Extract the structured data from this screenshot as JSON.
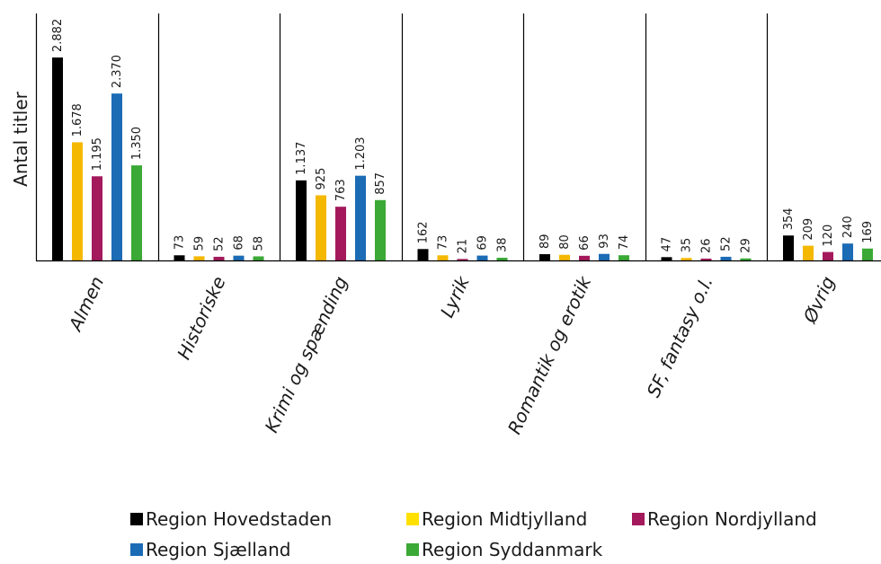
{
  "chart_data": {
    "type": "bar",
    "ylabel": "Antal titler",
    "xlabel": "",
    "title": "",
    "ylim": [
      0,
      2882
    ],
    "grid": false,
    "legend_position": "bottom",
    "categories": [
      "Almen",
      "Historiske",
      "Krimi og spænding",
      "Lyrik",
      "Romantik og erotik",
      "SF, fantasy o.l.",
      "Øvrig"
    ],
    "series": [
      {
        "name": "Region Hovedstaden",
        "color": "#000000",
        "values": [
          2882,
          73,
          1137,
          162,
          89,
          47,
          354
        ],
        "labels": [
          "2.882",
          "73",
          "1.137",
          "162",
          "89",
          "47",
          "354"
        ]
      },
      {
        "name": "Region Midtjylland",
        "color": "#f5b800",
        "values": [
          1678,
          59,
          925,
          73,
          80,
          35,
          209
        ],
        "labels": [
          "1.678",
          "59",
          "925",
          "73",
          "80",
          "35",
          "209"
        ]
      },
      {
        "name": "Region Nordjylland",
        "color": "#a3195b",
        "values": [
          1195,
          52,
          763,
          21,
          66,
          26,
          120
        ],
        "labels": [
          "1.195",
          "52",
          "763",
          "21",
          "66",
          "26",
          "120"
        ]
      },
      {
        "name": "Region Sjælland",
        "color": "#1b6bb5",
        "values": [
          2370,
          68,
          1203,
          69,
          93,
          52,
          240
        ],
        "labels": [
          "2.370",
          "68",
          "1.203",
          "69",
          "93",
          "52",
          "240"
        ]
      },
      {
        "name": "Region Syddanmark",
        "color": "#3aa935",
        "values": [
          1350,
          58,
          857,
          38,
          74,
          29,
          169
        ],
        "labels": [
          "1.350",
          "58",
          "857",
          "38",
          "74",
          "29",
          "169"
        ]
      }
    ],
    "legend": [
      {
        "label": "Region Hovedstaden",
        "color": "#000000"
      },
      {
        "label": "Region Midtjylland",
        "color": "#ffe000"
      },
      {
        "label": "Region Nordjylland",
        "color": "#a3195b"
      },
      {
        "label": "Region Sjælland",
        "color": "#1b6bb5"
      },
      {
        "label": "Region Syddanmark",
        "color": "#3aa935"
      }
    ]
  }
}
